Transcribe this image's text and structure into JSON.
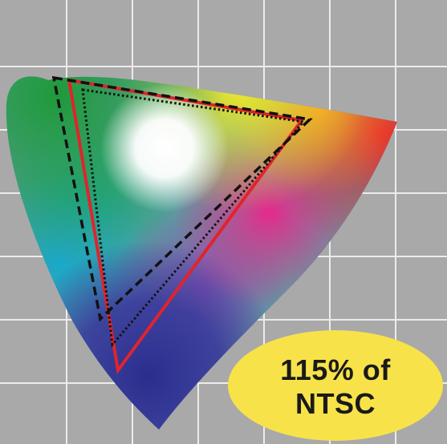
{
  "badge": {
    "line1": "115% of",
    "line2": "NTSC"
  },
  "colors": {
    "background": "#a9a9a9",
    "grid": "#ececec",
    "badge": "#f7e24a",
    "gamut_red_outline": "#e0242c",
    "gamut_black_outline": "#111111"
  },
  "gamuts": [
    {
      "name": "red-solid-triangle",
      "style": "solid",
      "color": "#e0242c"
    },
    {
      "name": "black-dashed-triangle",
      "style": "dashed",
      "color": "#111111"
    },
    {
      "name": "black-dotted-triangle",
      "style": "dotted",
      "color": "#111111"
    }
  ]
}
